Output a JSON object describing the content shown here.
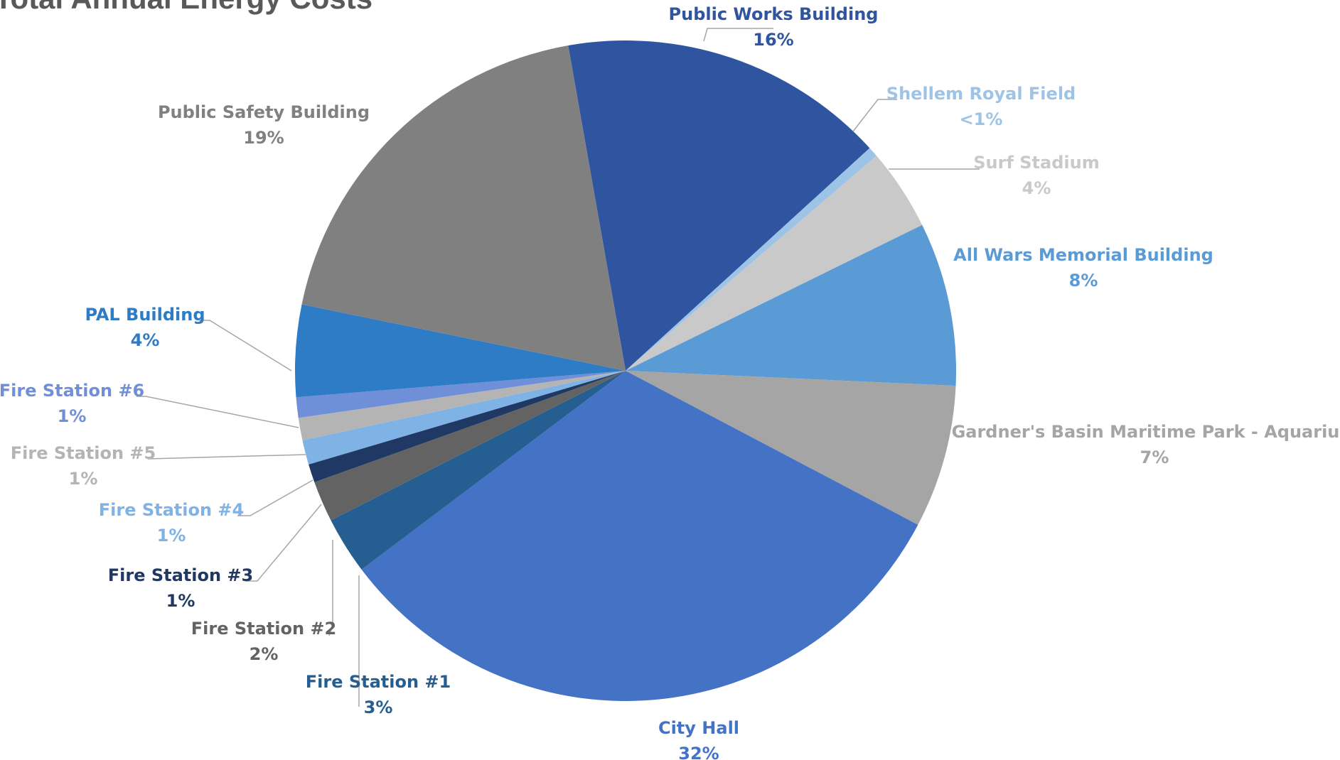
{
  "chart_data": {
    "type": "pie",
    "title": "Total Annual Energy Costs",
    "slices": [
      {
        "name": "Public Works Building",
        "value": 16,
        "percent_label": "16%",
        "color": "#2f55a0"
      },
      {
        "name": "Shellem Royal Field",
        "value": 0.5,
        "percent_label": "<1%",
        "color": "#9dc3e6"
      },
      {
        "name": "Surf Stadium",
        "value": 4,
        "percent_label": "4%",
        "color": "#c9c9c9"
      },
      {
        "name": "All Wars Memorial Building",
        "value": 8,
        "percent_label": "8%",
        "color": "#5b9bd5"
      },
      {
        "name": "Gardner's Basin Maritime Park - Aquarium",
        "value": 7,
        "percent_label": "7%",
        "color": "#a5a5a5"
      },
      {
        "name": "City Hall",
        "value": 32,
        "percent_label": "32%",
        "color": "#4472c4"
      },
      {
        "name": "Fire Station #1",
        "value": 2.8,
        "percent_label": "3%",
        "color": "#255e91"
      },
      {
        "name": "Fire Station #2",
        "value": 2,
        "percent_label": "2%",
        "color": "#636363"
      },
      {
        "name": "Fire Station #3",
        "value": 0.9,
        "percent_label": "1%",
        "color": "#1f3864"
      },
      {
        "name": "Fire Station #4",
        "value": 1.2,
        "percent_label": "1%",
        "color": "#7fb2e5"
      },
      {
        "name": "Fire Station #5",
        "value": 1.1,
        "percent_label": "1%",
        "color": "#b4b4b4"
      },
      {
        "name": "Fire Station #6",
        "value": 1,
        "percent_label": "1%",
        "color": "#6f8fd8"
      },
      {
        "name": "PAL Building",
        "value": 4.5,
        "percent_label": "4%",
        "color": "#2e7bc6"
      },
      {
        "name": "Public Safety Building",
        "value": 19,
        "percent_label": "19%",
        "color": "#808080"
      }
    ],
    "label_colors": {
      "Public Works Building": "#2f55a0",
      "Shellem Royal Field": "#9dc3e6",
      "Surf Stadium": "#c9c9c9",
      "All Wars Memorial Building": "#5b9bd5",
      "Gardner's Basin Maritime Park - Aquarium": "#a5a5a5",
      "City Hall": "#4472c4",
      "Fire Station #1": "#255e91",
      "Fire Station #2": "#636363",
      "Fire Station #3": "#1f3864",
      "Fire Station #4": "#7fb2e5",
      "Fire Station #5": "#b4b4b4",
      "Fire Station #6": "#6f8fd8",
      "PAL Building": "#2e7bc6",
      "Public Safety Building": "#808080"
    },
    "legend": "none",
    "start_direction": "clockwise from top"
  }
}
